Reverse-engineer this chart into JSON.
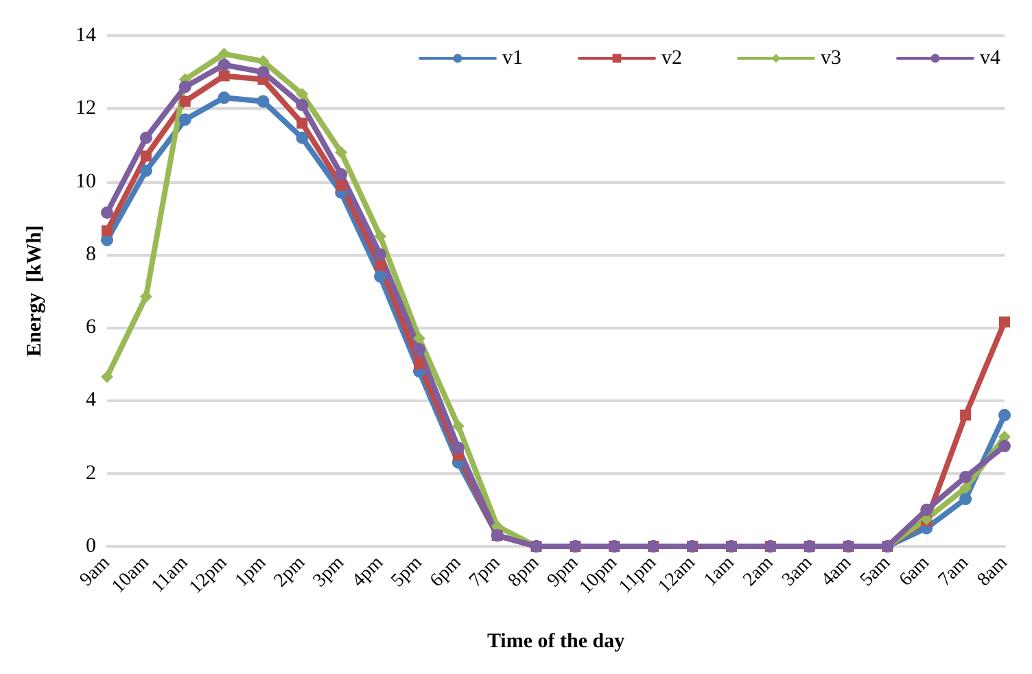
{
  "chart_data": {
    "type": "line",
    "xlabel": "Time of the day",
    "ylabel": "Energy  [kWh]",
    "categories": [
      "9am",
      "10am",
      "11am",
      "12pm",
      "1pm",
      "2pm",
      "3pm",
      "4pm",
      "5pm",
      "6pm",
      "7pm",
      "8pm",
      "9pm",
      "10pm",
      "11pm",
      "12am",
      "1am",
      "2am",
      "3am",
      "4am",
      "5am",
      "6am",
      "7am",
      "8am"
    ],
    "series": [
      {
        "name": "v1",
        "color": "#4a7ebb",
        "marker": "circle",
        "values": [
          8.4,
          10.3,
          11.7,
          12.3,
          12.2,
          11.2,
          9.7,
          7.4,
          4.8,
          2.3,
          0.3,
          0,
          0,
          0,
          0,
          0,
          0,
          0,
          0,
          0,
          0,
          0.5,
          1.3,
          3.6
        ]
      },
      {
        "name": "v2",
        "color": "#be4b48",
        "marker": "square",
        "values": [
          8.65,
          10.7,
          12.2,
          12.9,
          12.8,
          11.6,
          9.9,
          7.7,
          5.0,
          2.5,
          0.3,
          0,
          0,
          0,
          0,
          0,
          0,
          0,
          0,
          0,
          0,
          0.7,
          3.6,
          6.15
        ]
      },
      {
        "name": "v3",
        "color": "#98b954",
        "marker": "diamond",
        "values": [
          4.65,
          6.85,
          12.8,
          13.5,
          13.3,
          12.4,
          10.8,
          8.5,
          5.7,
          3.3,
          0.55,
          0,
          0,
          0,
          0,
          0,
          0,
          0,
          0,
          0,
          0,
          0.75,
          1.6,
          3.0
        ]
      },
      {
        "name": "v4",
        "color": "#7d5fa0",
        "marker": "circle",
        "values": [
          9.15,
          11.2,
          12.6,
          13.2,
          13.0,
          12.1,
          10.2,
          8.0,
          5.4,
          2.7,
          0.3,
          0,
          0,
          0,
          0,
          0,
          0,
          0,
          0,
          0,
          0,
          1.0,
          1.9,
          2.75
        ]
      }
    ],
    "ylim": [
      0,
      14
    ],
    "yticks": [
      0,
      2,
      4,
      6,
      8,
      10,
      12,
      14
    ],
    "grid": "y",
    "legend": "top right",
    "line_style": "solid"
  }
}
